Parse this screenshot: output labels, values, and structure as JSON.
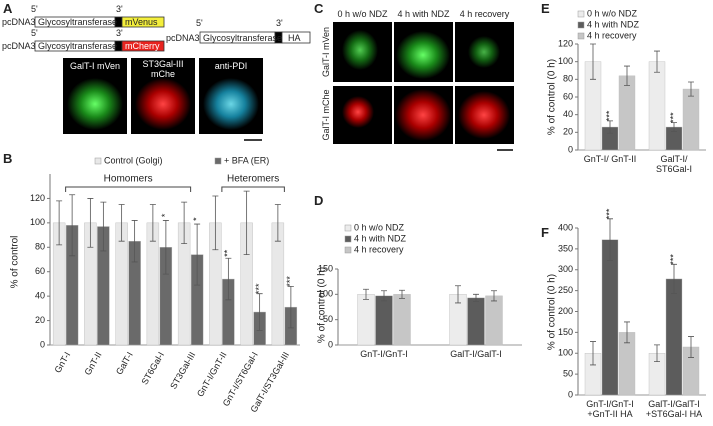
{
  "panel_labels": [
    "A",
    "B",
    "C",
    "D",
    "E",
    "F"
  ],
  "panel_a": {
    "constructs": [
      {
        "vector": "pcDNA3",
        "five": "5'",
        "three": "3'",
        "gene": "Glycosyltransferase",
        "tag": "mVenus"
      },
      {
        "vector": "pcDNA3",
        "five": "5'",
        "three": "3'",
        "gene": "Glycosyltransferase",
        "tag": "mCherry"
      },
      {
        "vector": "pcDNA3",
        "five": "5'",
        "three": "3'",
        "gene": "Glycosyltransferase",
        "tag": "HA"
      }
    ],
    "images": [
      "GalT-I mVen",
      "ST3Gal-III mChe",
      "anti-PDI"
    ]
  },
  "panel_c": {
    "columns": [
      "0 h w/o NDZ",
      "4 h with NDZ",
      "4 h recovery"
    ],
    "rows": [
      "GalT-I mVen",
      "GalT-I mChe"
    ]
  },
  "chart_data": [
    {
      "type": "bar",
      "ylabel": "% of control",
      "categories": [
        "GnT-I",
        "GnT-II",
        "GalT-I",
        "ST6Gal-I",
        "ST3Gal-III",
        "GnT-I/GnT-II",
        "GnT-I/ST6Gal-I",
        "GalT-I/ST3Gal-III"
      ],
      "groups": [
        "Homomers",
        "Heteromers"
      ],
      "ylim": [
        0,
        140
      ],
      "yticks": [
        0,
        20,
        40,
        60,
        80,
        100,
        120
      ],
      "series": [
        {
          "name": "Control (Golgi)",
          "color": "#e8e8e8",
          "values": [
            100,
            100,
            100,
            100,
            100,
            100,
            100,
            100
          ],
          "errors": [
            18,
            20,
            15,
            15,
            17,
            22,
            26,
            15
          ]
        },
        {
          "name": "+ BFA (ER)",
          "color": "#6a6a6a",
          "values": [
            98,
            97,
            85,
            80,
            74,
            54,
            27,
            31
          ],
          "errors": [
            25,
            20,
            17,
            22,
            25,
            17,
            15,
            17
          ],
          "significance": [
            null,
            null,
            null,
            "*",
            "*",
            "**",
            "***",
            "***"
          ]
        }
      ]
    },
    {
      "type": "bar",
      "ylabel": "% of control (0 h)",
      "categories": [
        "GnT-I/GnT-I",
        "GalT-I/GalT-I"
      ],
      "ylim": [
        0,
        150
      ],
      "yticks": [
        0,
        50,
        100,
        150
      ],
      "series": [
        {
          "name": "0 h w/o NDZ",
          "color": "#ececec",
          "values": [
            100,
            100
          ],
          "errors": [
            10,
            17
          ]
        },
        {
          "name": "4 h with NDZ",
          "color": "#5c5c5c",
          "values": [
            97,
            93
          ],
          "errors": [
            10,
            7
          ]
        },
        {
          "name": "4 h recovery",
          "color": "#c6c6c6",
          "values": [
            100,
            97
          ],
          "errors": [
            8,
            10
          ]
        }
      ]
    },
    {
      "type": "bar",
      "ylabel": "% of control (0 h)",
      "categories": [
        "GnT-I/ GnT-II",
        "GalT-I/ ST6Gal-I"
      ],
      "ylim": [
        0,
        120
      ],
      "yticks": [
        0,
        20,
        40,
        60,
        80,
        100,
        120
      ],
      "series": [
        {
          "name": "0 h w/o NDZ",
          "color": "#ececec",
          "values": [
            100,
            100
          ],
          "errors": [
            20,
            12
          ]
        },
        {
          "name": "4 h with NDZ",
          "color": "#5c5c5c",
          "values": [
            26,
            26
          ],
          "errors": [
            7,
            5
          ],
          "significance": [
            "***",
            "***"
          ]
        },
        {
          "name": "4 h recovery",
          "color": "#c6c6c6",
          "values": [
            84,
            69
          ],
          "errors": [
            11,
            8
          ]
        }
      ]
    },
    {
      "type": "bar",
      "ylabel": "% of control (0 h)",
      "categories": [
        "GnT-I/GnT-I +GnT-II HA",
        "GalT-I/GalT-I +ST6Gal-I HA"
      ],
      "ylim": [
        0,
        400
      ],
      "yticks": [
        0,
        50,
        100,
        150,
        200,
        250,
        300,
        350,
        400
      ],
      "series": [
        {
          "color": "#ececec",
          "values": [
            100,
            100
          ],
          "errors": [
            28,
            20
          ]
        },
        {
          "color": "#5c5c5c",
          "values": [
            372,
            278
          ],
          "errors": [
            50,
            35
          ],
          "significance": [
            "***",
            "***"
          ]
        },
        {
          "color": "#c6c6c6",
          "values": [
            150,
            115
          ],
          "errors": [
            25,
            25
          ]
        }
      ]
    }
  ]
}
